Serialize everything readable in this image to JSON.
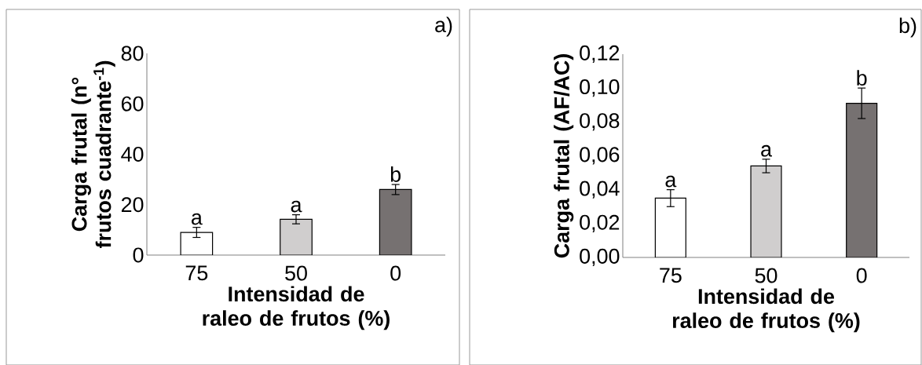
{
  "chart_data": [
    {
      "type": "bar",
      "title": "a)",
      "xlabel": "Intensidad de raleo de frutos (%)",
      "ylabel": "Carga frutal (n° frutos cuadrante$^{-1}$)",
      "categories": [
        "75",
        "50",
        "0"
      ],
      "values": [
        9,
        14.2,
        26
      ],
      "errors": [
        2,
        1.8,
        2
      ],
      "colors": [
        "#ffffff",
        "#d0cece",
        "#767171"
      ],
      "ylim": [
        0,
        80
      ],
      "yticks": [
        0,
        20,
        40,
        60,
        80
      ],
      "annotations": [
        {
          "text": "a",
          "x": "75",
          "y": 11
        },
        {
          "text": "a",
          "x": "50",
          "y": 16
        },
        {
          "text": "b",
          "x": "0",
          "y": 28
        }
      ]
    },
    {
      "type": "bar",
      "title": "b)",
      "xlabel": "Intensidad de raleo de frutos (%)",
      "ylabel": "Carga frutal (AF/AC)",
      "categories": [
        "75",
        "50",
        "0"
      ],
      "values": [
        0.035,
        0.054,
        0.091
      ],
      "errors": [
        0.005,
        0.004,
        0.009
      ],
      "colors": [
        "#ffffff",
        "#d0cece",
        "#767171"
      ],
      "ylim": [
        0,
        0.12
      ],
      "yticks": [
        {
          "value": 0,
          "label": "0,00"
        },
        {
          "value": 0.02,
          "label": "0,02"
        },
        {
          "value": 0.04,
          "label": "0,04"
        },
        {
          "value": 0.06,
          "label": "0,06"
        },
        {
          "value": 0.08,
          "label": "0,08"
        },
        {
          "value": 0.1,
          "label": "0,10"
        },
        {
          "value": 0.12,
          "label": "0,12"
        }
      ],
      "annotations": [
        {
          "text": "a",
          "x": "75",
          "y": 0.04
        },
        {
          "text": "a",
          "x": "50",
          "y": 0.058
        },
        {
          "text": "b",
          "x": "0",
          "y": 0.1
        }
      ]
    }
  ]
}
